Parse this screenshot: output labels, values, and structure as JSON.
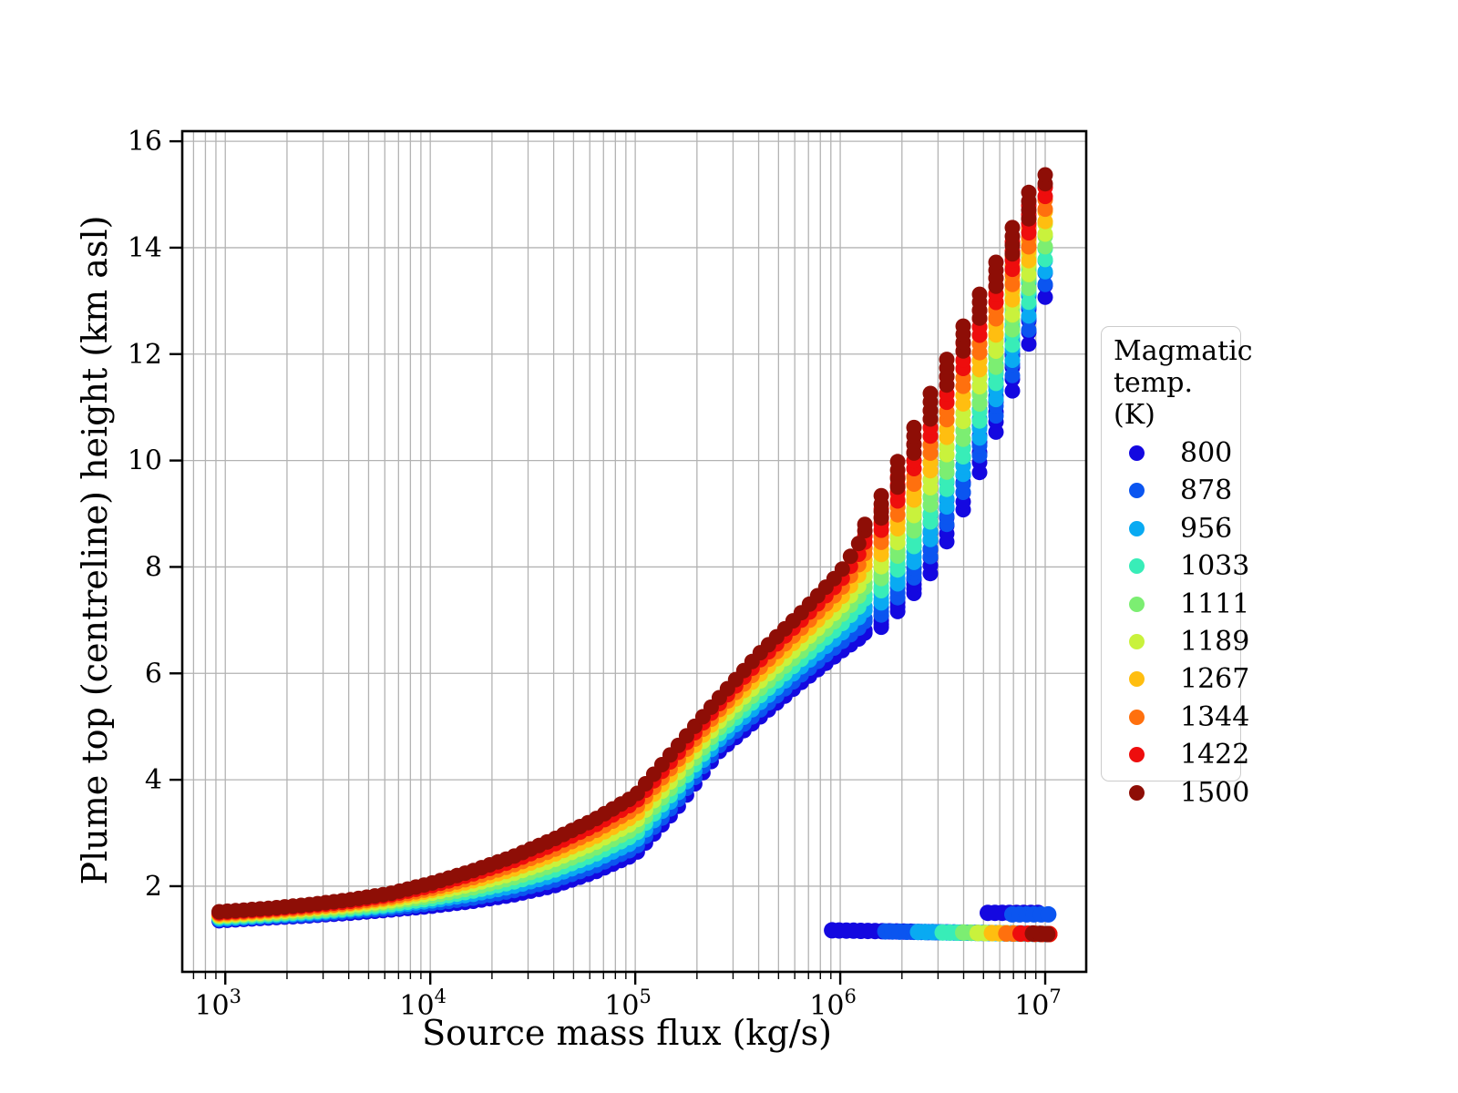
{
  "figure": {
    "background": "#ffffff"
  },
  "axes": {
    "xlabel": "Source mass flux (kg/s)",
    "ylabel": "Plume top (centreline) height (km asl)",
    "x_scale": "log",
    "x_log_range": [
      2.79,
      7.2
    ],
    "y_range": [
      0.39,
      16.19
    ],
    "x_major_ticks": [
      {
        "log10": 3,
        "label": {
          "base": "10",
          "exp": "3"
        }
      },
      {
        "log10": 4,
        "label": {
          "base": "10",
          "exp": "4"
        }
      },
      {
        "log10": 5,
        "label": {
          "base": "10",
          "exp": "5"
        }
      },
      {
        "log10": 6,
        "label": {
          "base": "10",
          "exp": "6"
        }
      },
      {
        "log10": 7,
        "label": {
          "base": "10",
          "exp": "7"
        }
      }
    ],
    "x_minor_subs": [
      2,
      3,
      4,
      5,
      6,
      7,
      8,
      9
    ],
    "y_major_ticks": [
      2,
      4,
      6,
      8,
      10,
      12,
      14,
      16
    ],
    "grid": true,
    "grid_color": "#b3b3b3",
    "spine_color": "#000000",
    "tick_color": "#000000"
  },
  "legend": {
    "title_line1": "Magmatic",
    "title_line2": "temp. (K)",
    "entries": [
      {
        "label": "800",
        "color": "#1408e0"
      },
      {
        "label": "878",
        "color": "#0b55f0"
      },
      {
        "label": "956",
        "color": "#09aaf2"
      },
      {
        "label": "1033",
        "color": "#38edb8"
      },
      {
        "label": "1111",
        "color": "#7cee72"
      },
      {
        "label": "1189",
        "color": "#c9f23c"
      },
      {
        "label": "1267",
        "color": "#ffbe10"
      },
      {
        "label": "1344",
        "color": "#ff700e"
      },
      {
        "label": "1422",
        "color": "#ee0d0d"
      },
      {
        "label": "1500",
        "color": "#8e0e06"
      }
    ]
  },
  "chart_data": {
    "type": "scatter",
    "title": "",
    "xlabel": "Source mass flux (kg/s)",
    "ylabel": "Plume top (centreline) height (km asl)",
    "x_axis": {
      "scale": "log",
      "tick_values": [
        1000,
        10000,
        100000,
        1000000,
        10000000
      ]
    },
    "y_axis": {
      "tick_values": [
        2,
        4,
        6,
        8,
        10,
        12,
        14,
        16
      ],
      "units": "km asl"
    },
    "legend_title": "Magmatic temp. (K)",
    "marker_radius_px": 8.5,
    "collapse_marker_radius_px": 9,
    "render_hints": {
      "sample_step_log10x": 0.04,
      "steep_sample_step_log10x": 0.02,
      "quantize": {
        "start_log10x": 6.12,
        "step": 0.08
      }
    },
    "anchor_log10x": [
      2.97,
      3.2,
      3.4,
      3.6,
      3.8,
      4.0,
      4.2,
      4.4,
      4.6,
      4.8,
      5.0,
      5.2,
      5.4,
      5.6,
      5.8,
      6.0,
      6.2,
      6.4,
      6.6,
      6.8,
      7.0
    ],
    "series": [
      {
        "name": "800",
        "temperature_K": 800,
        "color": "#1408e0",
        "anchor_y": [
          1.35,
          1.4,
          1.44,
          1.49,
          1.55,
          1.62,
          1.71,
          1.83,
          2.0,
          2.26,
          2.6,
          3.45,
          4.5,
          5.15,
          5.8,
          6.4,
          6.95,
          7.8,
          9.3,
          11.2,
          13.4
        ],
        "low_branch": {
          "log10x": [
            5.96,
            7.02
          ],
          "y": [
            1.17,
            1.1
          ]
        },
        "upper_tail": {
          "log10x": [
            6.72,
            6.97
          ],
          "y": [
            1.5,
            1.5
          ]
        }
      },
      {
        "name": "878",
        "temperature_K": 878,
        "color": "#0b55f0",
        "anchor_y": [
          1.37,
          1.42,
          1.46,
          1.52,
          1.58,
          1.67,
          1.77,
          1.91,
          2.1,
          2.37,
          2.72,
          3.58,
          4.61,
          5.28,
          5.94,
          6.57,
          7.19,
          8.12,
          9.63,
          11.49,
          13.63
        ],
        "low_branch": {
          "log10x": [
            6.22,
            7.02
          ],
          "y": [
            1.15,
            1.1
          ]
        },
        "upper_tail": {
          "log10x": [
            6.84,
            7.02
          ],
          "y": [
            1.47,
            1.47
          ]
        }
      },
      {
        "name": "956",
        "temperature_K": 956,
        "color": "#09aaf2",
        "anchor_y": [
          1.39,
          1.44,
          1.49,
          1.55,
          1.62,
          1.72,
          1.84,
          1.99,
          2.2,
          2.48,
          2.84,
          3.71,
          4.72,
          5.42,
          6.09,
          6.73,
          7.43,
          8.44,
          9.97,
          11.78,
          13.86
        ],
        "low_branch": {
          "log10x": [
            6.38,
            7.02
          ],
          "y": [
            1.14,
            1.1
          ]
        }
      },
      {
        "name": "1033",
        "temperature_K": 1033,
        "color": "#38edb8",
        "anchor_y": [
          1.41,
          1.46,
          1.51,
          1.57,
          1.65,
          1.76,
          1.9,
          2.07,
          2.29,
          2.59,
          2.97,
          3.83,
          4.83,
          5.55,
          6.23,
          6.9,
          7.67,
          8.77,
          10.3,
          12.07,
          14.08
        ],
        "low_branch": {
          "log10x": [
            6.5,
            7.02
          ],
          "y": [
            1.13,
            1.1
          ]
        }
      },
      {
        "name": "1111",
        "temperature_K": 1111,
        "color": "#7cee72",
        "anchor_y": [
          1.43,
          1.48,
          1.53,
          1.6,
          1.69,
          1.81,
          1.96,
          2.15,
          2.39,
          2.7,
          3.09,
          3.96,
          4.94,
          5.68,
          6.38,
          7.07,
          7.91,
          9.09,
          10.63,
          12.36,
          14.31
        ],
        "low_branch": {
          "log10x": [
            6.6,
            7.02
          ],
          "y": [
            1.13,
            1.1
          ]
        }
      },
      {
        "name": "1189",
        "temperature_K": 1189,
        "color": "#c9f23c",
        "anchor_y": [
          1.44,
          1.5,
          1.56,
          1.63,
          1.72,
          1.86,
          2.03,
          2.23,
          2.49,
          2.81,
          3.21,
          4.09,
          5.06,
          5.82,
          6.52,
          7.23,
          8.14,
          9.41,
          10.97,
          12.64,
          14.54
        ],
        "low_branch": {
          "log10x": [
            6.67,
            7.02
          ],
          "y": [
            1.12,
            1.1
          ]
        }
      },
      {
        "name": "1267",
        "temperature_K": 1267,
        "color": "#ffbe10",
        "anchor_y": [
          1.46,
          1.52,
          1.58,
          1.66,
          1.76,
          1.91,
          2.09,
          2.31,
          2.59,
          2.92,
          3.33,
          4.22,
          5.17,
          5.95,
          6.67,
          7.4,
          8.38,
          9.73,
          11.3,
          12.93,
          14.77
        ],
        "low_branch": {
          "log10x": [
            6.74,
            7.02
          ],
          "y": [
            1.12,
            1.1
          ]
        }
      },
      {
        "name": "1344",
        "temperature_K": 1344,
        "color": "#ff700e",
        "anchor_y": [
          1.48,
          1.54,
          1.6,
          1.68,
          1.79,
          1.95,
          2.15,
          2.39,
          2.68,
          3.03,
          3.46,
          4.34,
          5.28,
          6.08,
          6.81,
          7.57,
          8.62,
          10.06,
          11.63,
          13.22,
          14.99
        ],
        "low_branch": {
          "log10x": [
            6.81,
            7.02
          ],
          "y": [
            1.11,
            1.1
          ]
        }
      },
      {
        "name": "1422",
        "temperature_K": 1422,
        "color": "#ee0d0d",
        "anchor_y": [
          1.5,
          1.56,
          1.63,
          1.71,
          1.83,
          2.0,
          2.22,
          2.47,
          2.78,
          3.14,
          3.58,
          4.47,
          5.39,
          6.22,
          6.96,
          7.73,
          8.86,
          10.38,
          11.97,
          13.51,
          15.22
        ],
        "low_branch": {
          "log10x": [
            6.88,
            7.02
          ],
          "y": [
            1.11,
            1.1
          ]
        }
      },
      {
        "name": "1500",
        "temperature_K": 1500,
        "color": "#8e0e06",
        "anchor_y": [
          1.52,
          1.58,
          1.65,
          1.74,
          1.86,
          2.05,
          2.28,
          2.55,
          2.88,
          3.25,
          3.7,
          4.6,
          5.5,
          6.35,
          7.1,
          7.9,
          9.1,
          10.7,
          12.3,
          13.8,
          15.45
        ],
        "low_branch": {
          "log10x": [
            6.94,
            7.02
          ],
          "y": [
            1.11,
            1.1
          ]
        }
      }
    ]
  }
}
